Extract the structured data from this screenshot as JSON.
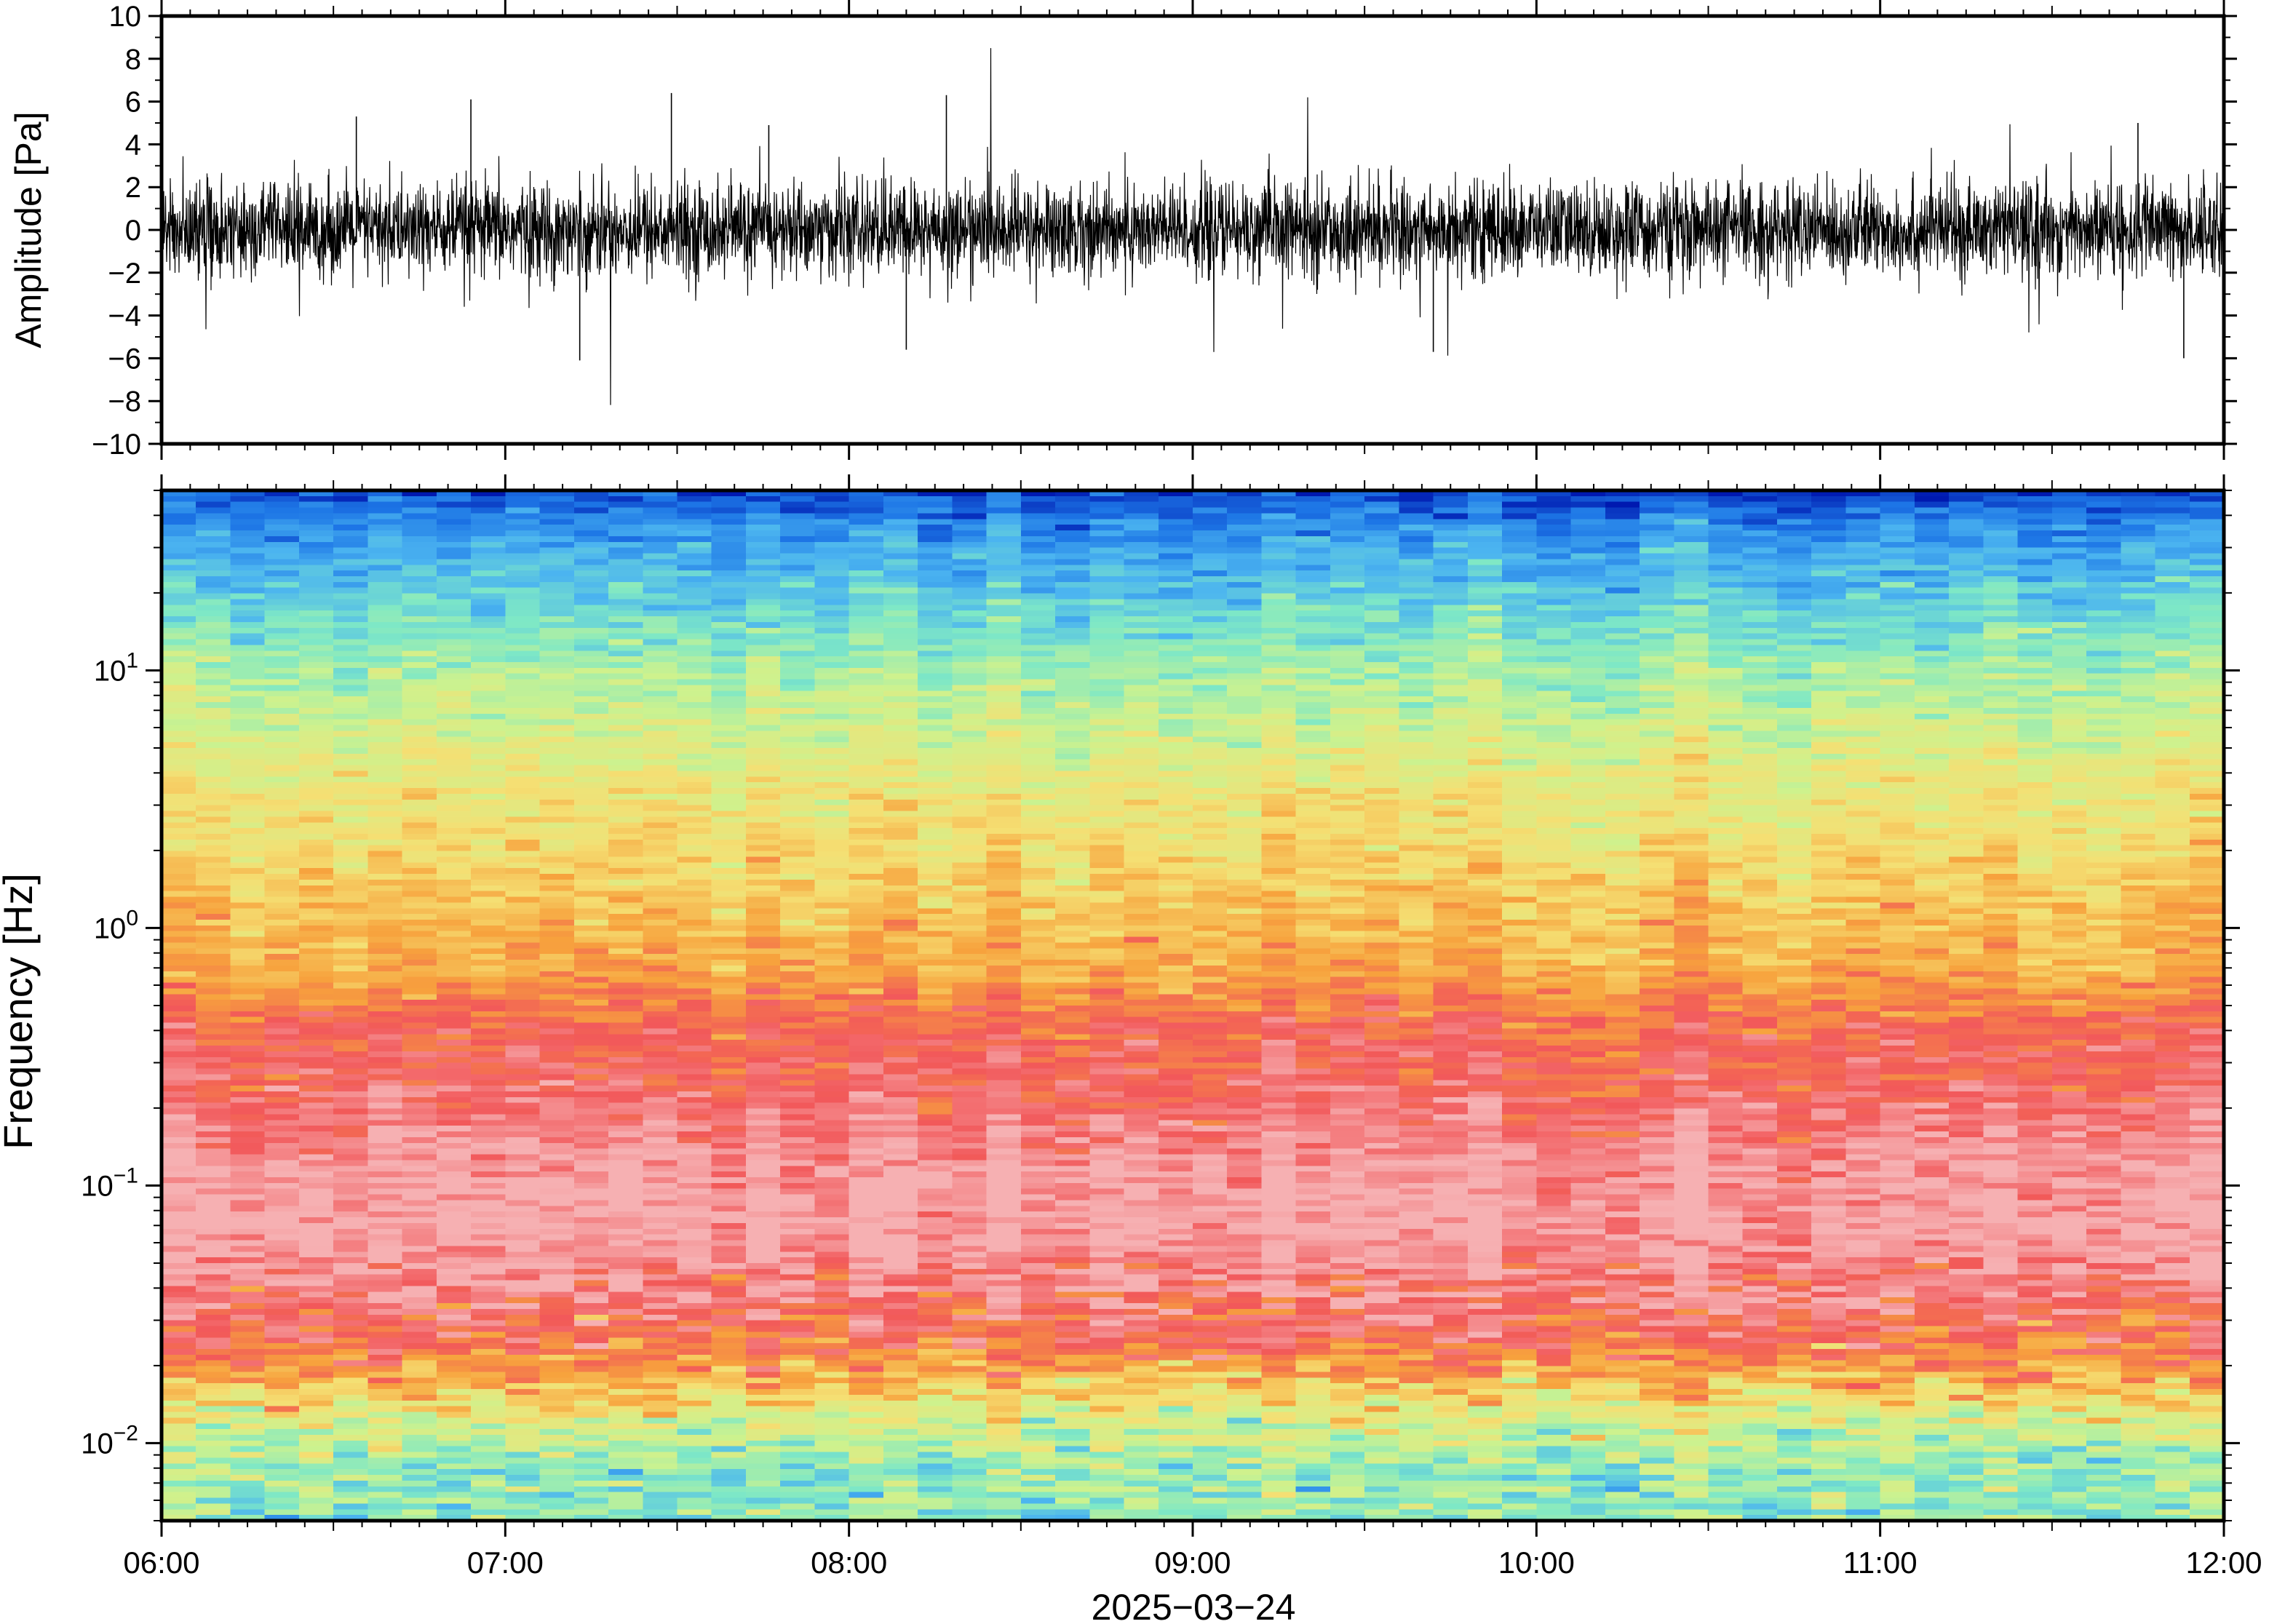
{
  "chart_data": [
    {
      "type": "line",
      "panel": "waveform",
      "ylabel": "Amplitude [Pa]",
      "ylim": [
        -10,
        10
      ],
      "yticks": [
        -10,
        -8,
        -6,
        -4,
        -2,
        0,
        2,
        4,
        6,
        8,
        10
      ],
      "ytick_labels": [
        "−10",
        "−8",
        "−6",
        "−4",
        "−2",
        "0",
        "2",
        "4",
        "6",
        "8",
        "10"
      ],
      "x_range": [
        "06:00",
        "12:00"
      ],
      "noise_rms": 1.1,
      "peaks": [
        {
          "t": "06:34",
          "value": 5.3
        },
        {
          "t": "06:54",
          "value": 6.1
        },
        {
          "t": "07:29",
          "value": 6.4
        },
        {
          "t": "07:46",
          "value": 4.9
        },
        {
          "t": "08:10",
          "value": -5.6
        },
        {
          "t": "08:17",
          "value": 6.3
        },
        {
          "t": "07:13",
          "value": -6.1
        },
        {
          "t": "09:42",
          "value": -5.7
        },
        {
          "t": "11:45",
          "value": 5.0
        },
        {
          "t": "11:53",
          "value": -6.0
        }
      ],
      "color": "#000000"
    },
    {
      "type": "heatmap",
      "panel": "spectrogram",
      "ylabel": "Frequency [Hz]",
      "yscale": "log",
      "ylim": [
        0.005,
        50
      ],
      "yticks": [
        0.01,
        0.1,
        1,
        10
      ],
      "ytick_labels": [
        {
          "base": "10",
          "exp": "−2"
        },
        {
          "base": "10",
          "exp": "−1"
        },
        {
          "base": "10",
          "exp": "0"
        },
        {
          "base": "10",
          "exp": "1"
        }
      ],
      "xlabel": "2025−03−24",
      "x_range": [
        "06:00",
        "12:00"
      ],
      "xticks": [
        "06:00",
        "07:00",
        "08:00",
        "09:00",
        "10:00",
        "11:00",
        "12:00"
      ],
      "colormap_stops": [
        "#0019b0",
        "#1d76e6",
        "#4bb4f0",
        "#7ee8c6",
        "#cdf28e",
        "#f5df73",
        "#f7a23d",
        "#f2585a",
        "#f6b0b2"
      ],
      "level_profile": [
        {
          "f": 0.005,
          "level": 0.4
        },
        {
          "f": 0.008,
          "level": 0.42
        },
        {
          "f": 0.012,
          "level": 0.52
        },
        {
          "f": 0.018,
          "level": 0.72
        },
        {
          "f": 0.025,
          "level": 0.86
        },
        {
          "f": 0.04,
          "level": 0.92
        },
        {
          "f": 0.07,
          "level": 1.0
        },
        {
          "f": 0.12,
          "level": 0.97
        },
        {
          "f": 0.25,
          "level": 0.88
        },
        {
          "f": 0.4,
          "level": 0.86
        },
        {
          "f": 0.7,
          "level": 0.73
        },
        {
          "f": 1.5,
          "level": 0.66
        },
        {
          "f": 4,
          "level": 0.57
        },
        {
          "f": 10,
          "level": 0.44
        },
        {
          "f": 20,
          "level": 0.3
        },
        {
          "f": 35,
          "level": 0.19
        },
        {
          "f": 50,
          "level": 0.05
        }
      ]
    }
  ]
}
